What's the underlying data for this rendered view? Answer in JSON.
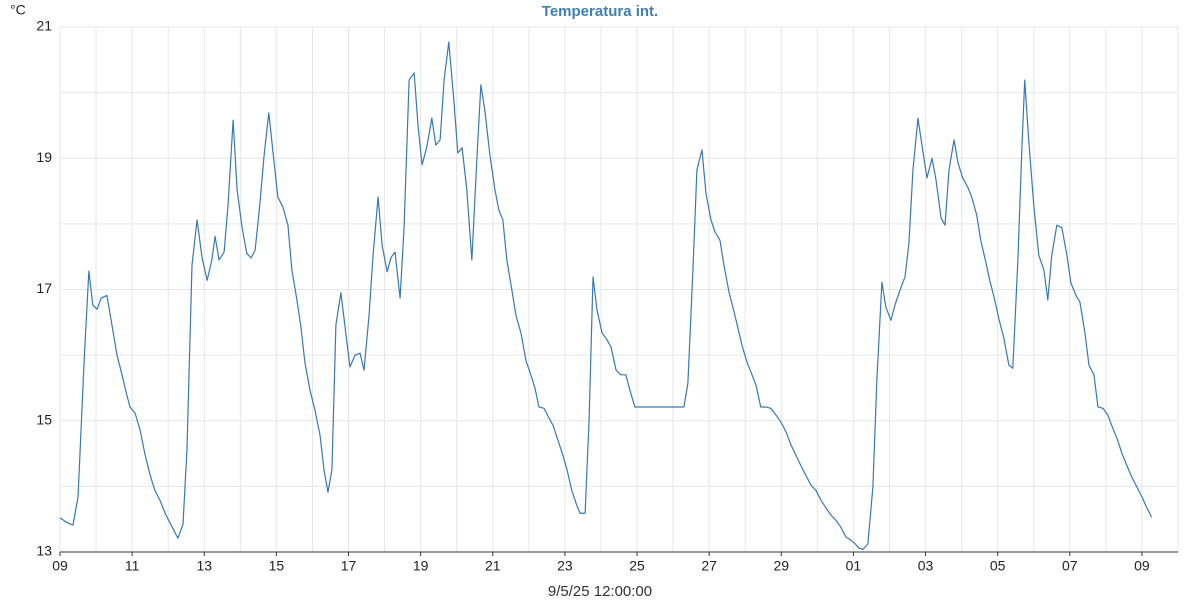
{
  "chart_data": {
    "type": "line",
    "title": "Temperatura int.",
    "y_unit": "°C",
    "x_label": "9/5/25 12:00:00",
    "xlim": [
      0,
      31
    ],
    "ylim": [
      13,
      21
    ],
    "yticks": [
      13,
      15,
      17,
      19,
      21
    ],
    "yminor": [
      14,
      16,
      18,
      20
    ],
    "xticks": [
      {
        "value": 0,
        "label": "09"
      },
      {
        "value": 2,
        "label": "11"
      },
      {
        "value": 4,
        "label": "13"
      },
      {
        "value": 6,
        "label": "15"
      },
      {
        "value": 8,
        "label": "17"
      },
      {
        "value": 10,
        "label": "19"
      },
      {
        "value": 12,
        "label": "21"
      },
      {
        "value": 14,
        "label": "23"
      },
      {
        "value": 16,
        "label": "25"
      },
      {
        "value": 18,
        "label": "27"
      },
      {
        "value": 20,
        "label": "29"
      },
      {
        "value": 22,
        "label": "01"
      },
      {
        "value": 24,
        "label": "03"
      },
      {
        "value": 26,
        "label": "05"
      },
      {
        "value": 28,
        "label": "07"
      },
      {
        "value": 30,
        "label": "09"
      }
    ],
    "xminor": [
      1,
      3,
      5,
      7,
      9,
      11,
      13,
      15,
      17,
      19,
      21,
      23,
      25,
      27,
      29
    ],
    "grid": true,
    "series": [
      {
        "color": "#3a78b0",
        "x": [
          0,
          0.19,
          0.36,
          0.5,
          0.67,
          0.8,
          0.91,
          1.03,
          1.14,
          1.3,
          1.44,
          1.58,
          1.72,
          1.83,
          1.94,
          2.08,
          2.22,
          2.36,
          2.5,
          2.63,
          2.77,
          2.94,
          3.11,
          3.27,
          3.41,
          3.52,
          3.66,
          3.8,
          3.94,
          4.08,
          4.21,
          4.3,
          4.41,
          4.55,
          4.66,
          4.8,
          4.91,
          5.05,
          5.18,
          5.3,
          5.41,
          5.54,
          5.66,
          5.79,
          5.93,
          6.04,
          6.18,
          6.32,
          6.43,
          6.57,
          6.68,
          6.79,
          6.93,
          7.07,
          7.21,
          7.32,
          7.43,
          7.54,
          7.65,
          7.79,
          7.93,
          8.04,
          8.18,
          8.32,
          8.43,
          8.57,
          8.68,
          8.82,
          8.93,
          9.07,
          9.18,
          9.29,
          9.43,
          9.54,
          9.68,
          9.82,
          9.93,
          10.04,
          10.17,
          10.31,
          10.42,
          10.54,
          10.65,
          10.78,
          10.92,
          11.03,
          11.15,
          11.28,
          11.42,
          11.56,
          11.67,
          11.78,
          11.92,
          12.06,
          12.17,
          12.28,
          12.39,
          12.53,
          12.64,
          12.78,
          12.92,
          13.03,
          13.17,
          13.28,
          13.42,
          13.56,
          13.67,
          13.81,
          13.94,
          14.06,
          14.19,
          14.33,
          14.42,
          14.56,
          14.67,
          14.78,
          14.89,
          15.03,
          15.17,
          15.28,
          15.42,
          15.55,
          15.69,
          15.8,
          15.94,
          17.3,
          17.41,
          17.55,
          17.66,
          17.8,
          17.91,
          18.05,
          18.16,
          18.3,
          18.41,
          18.55,
          18.69,
          18.8,
          18.91,
          19.05,
          19.16,
          19.3,
          19.43,
          19.57,
          19.71,
          19.85,
          19.99,
          20.13,
          20.27,
          20.4,
          20.54,
          20.68,
          20.82,
          20.96,
          21.1,
          21.24,
          21.38,
          21.52,
          21.65,
          21.79,
          21.93,
          22.04,
          22.15,
          22.26,
          22.4,
          22.54,
          22.65,
          22.79,
          22.9,
          23.04,
          23.15,
          23.29,
          23.43,
          23.54,
          23.65,
          23.79,
          23.9,
          24.04,
          24.18,
          24.29,
          24.43,
          24.54,
          24.65,
          24.79,
          24.9,
          25.03,
          25.17,
          25.28,
          25.42,
          25.53,
          25.67,
          25.78,
          25.92,
          26.03,
          26.17,
          26.31,
          26.42,
          26.56,
          26.67,
          26.75,
          26.86,
          27,
          27.14,
          27.28,
          27.39,
          27.5,
          27.64,
          27.78,
          27.92,
          28.03,
          28.17,
          28.28,
          28.42,
          28.53,
          28.67,
          28.78,
          28.92,
          29.05,
          29.19,
          29.33,
          29.44,
          29.58,
          29.72,
          29.86,
          30,
          30.13,
          30.27
        ],
        "values": [
          13.52,
          13.45,
          13.41,
          13.84,
          15.92,
          17.28,
          16.76,
          16.7,
          16.87,
          16.91,
          16.46,
          16.0,
          15.7,
          15.44,
          15.21,
          15.12,
          14.86,
          14.48,
          14.17,
          13.94,
          13.79,
          13.56,
          13.38,
          13.21,
          13.42,
          14.55,
          17.37,
          18.06,
          17.48,
          17.14,
          17.45,
          17.81,
          17.45,
          17.57,
          18.29,
          19.58,
          18.52,
          17.94,
          17.55,
          17.48,
          17.6,
          18.29,
          19.05,
          19.69,
          18.97,
          18.41,
          18.26,
          17.98,
          17.3,
          16.84,
          16.43,
          15.89,
          15.47,
          15.16,
          14.78,
          14.25,
          13.91,
          14.25,
          16.46,
          16.95,
          16.31,
          15.82,
          16.0,
          16.03,
          15.77,
          16.61,
          17.52,
          18.41,
          17.68,
          17.27,
          17.49,
          17.57,
          16.87,
          17.94,
          20.19,
          20.3,
          19.48,
          18.9,
          19.17,
          19.61,
          19.2,
          19.28,
          20.19,
          20.77,
          19.89,
          19.08,
          19.16,
          18.52,
          17.45,
          19.0,
          20.12,
          19.73,
          19.05,
          18.52,
          18.21,
          18.06,
          17.45,
          16.99,
          16.61,
          16.34,
          15.92,
          15.74,
          15.5,
          15.21,
          15.19,
          15.04,
          14.93,
          14.7,
          14.48,
          14.25,
          13.94,
          13.71,
          13.59,
          13.59,
          15.01,
          17.19,
          16.69,
          16.34,
          16.23,
          16.12,
          15.77,
          15.7,
          15.7,
          15.47,
          15.21,
          15.21,
          15.57,
          17.3,
          18.82,
          19.13,
          18.47,
          18.06,
          17.88,
          17.75,
          17.37,
          16.96,
          16.66,
          16.41,
          16.15,
          15.89,
          15.74,
          15.54,
          15.21,
          15.21,
          15.19,
          15.09,
          14.98,
          14.83,
          14.63,
          14.48,
          14.32,
          14.17,
          14.02,
          13.94,
          13.79,
          13.67,
          13.56,
          13.48,
          13.38,
          13.23,
          13.18,
          13.13,
          13.06,
          13.04,
          13.12,
          13.99,
          15.62,
          17.11,
          16.73,
          16.53,
          16.76,
          16.99,
          17.19,
          17.71,
          18.82,
          19.61,
          19.2,
          18.7,
          19.0,
          18.67,
          18.09,
          17.98,
          18.82,
          19.28,
          18.93,
          18.7,
          18.56,
          18.41,
          18.13,
          17.75,
          17.42,
          17.14,
          16.84,
          16.56,
          16.26,
          15.85,
          15.8,
          17.45,
          19.13,
          20.19,
          19.28,
          18.29,
          17.52,
          17.3,
          16.84,
          17.52,
          17.98,
          17.94,
          17.52,
          17.1,
          16.91,
          16.81,
          16.34,
          15.85,
          15.7,
          15.21,
          15.19,
          15.09,
          14.89,
          14.7,
          14.51,
          14.32,
          14.14,
          13.99,
          13.84,
          13.68,
          13.53
        ]
      }
    ]
  }
}
